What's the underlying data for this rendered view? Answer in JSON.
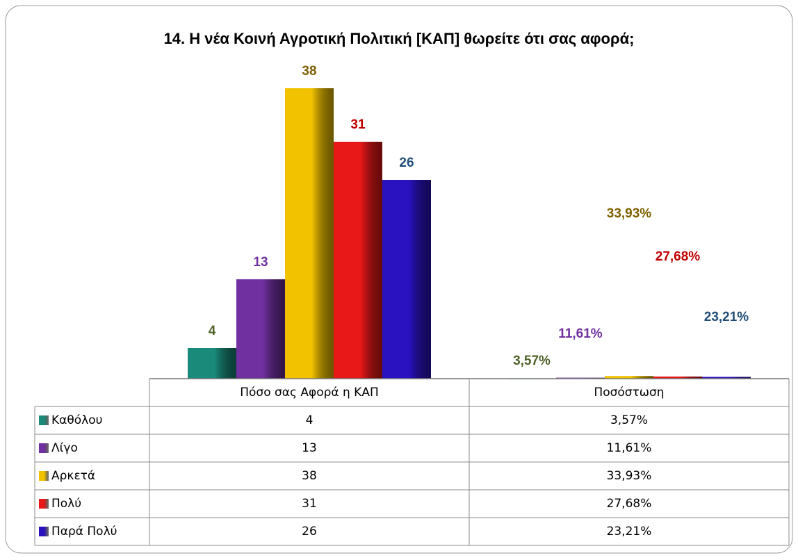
{
  "chart_data": {
    "type": "bar",
    "title": "14. Η νέα Κοινή Αγροτική Πολιτική [ΚΑΠ] θωρείτε ότι σας αφορά;",
    "categories": [
      "Πόσο σας Αφορά η ΚΑΠ",
      "Ποσόστωση"
    ],
    "ylim": [
      0,
      40
    ],
    "series": [
      {
        "name": "Καθόλου",
        "color": "#1a8a7a",
        "label_color": "#4f6228",
        "values": [
          4,
          0.0357
        ],
        "value_labels": [
          null,
          "3,57%"
        ]
      },
      {
        "name": "Λίγο",
        "color": "#7030a0",
        "label_color": "#7030a0",
        "values": [
          13,
          0.1161
        ],
        "value_labels": [
          null,
          "11,61%"
        ]
      },
      {
        "name": "Αρκετά",
        "color": "#f2c200",
        "label_color": "#7f6000",
        "values": [
          38,
          0.3393
        ],
        "value_labels": [
          null,
          "33,93%"
        ]
      },
      {
        "name": "Πολύ",
        "color": "#e81818",
        "label_color": "#c00000",
        "values": [
          31,
          0.2768
        ],
        "value_labels": [
          null,
          "27,68%"
        ]
      },
      {
        "name": "Παρά Πολύ",
        "color": "#2a12c0",
        "label_color": "#1f4e79",
        "values": [
          26,
          0.2321
        ],
        "value_labels": [
          null,
          "23,21%"
        ]
      }
    ]
  }
}
